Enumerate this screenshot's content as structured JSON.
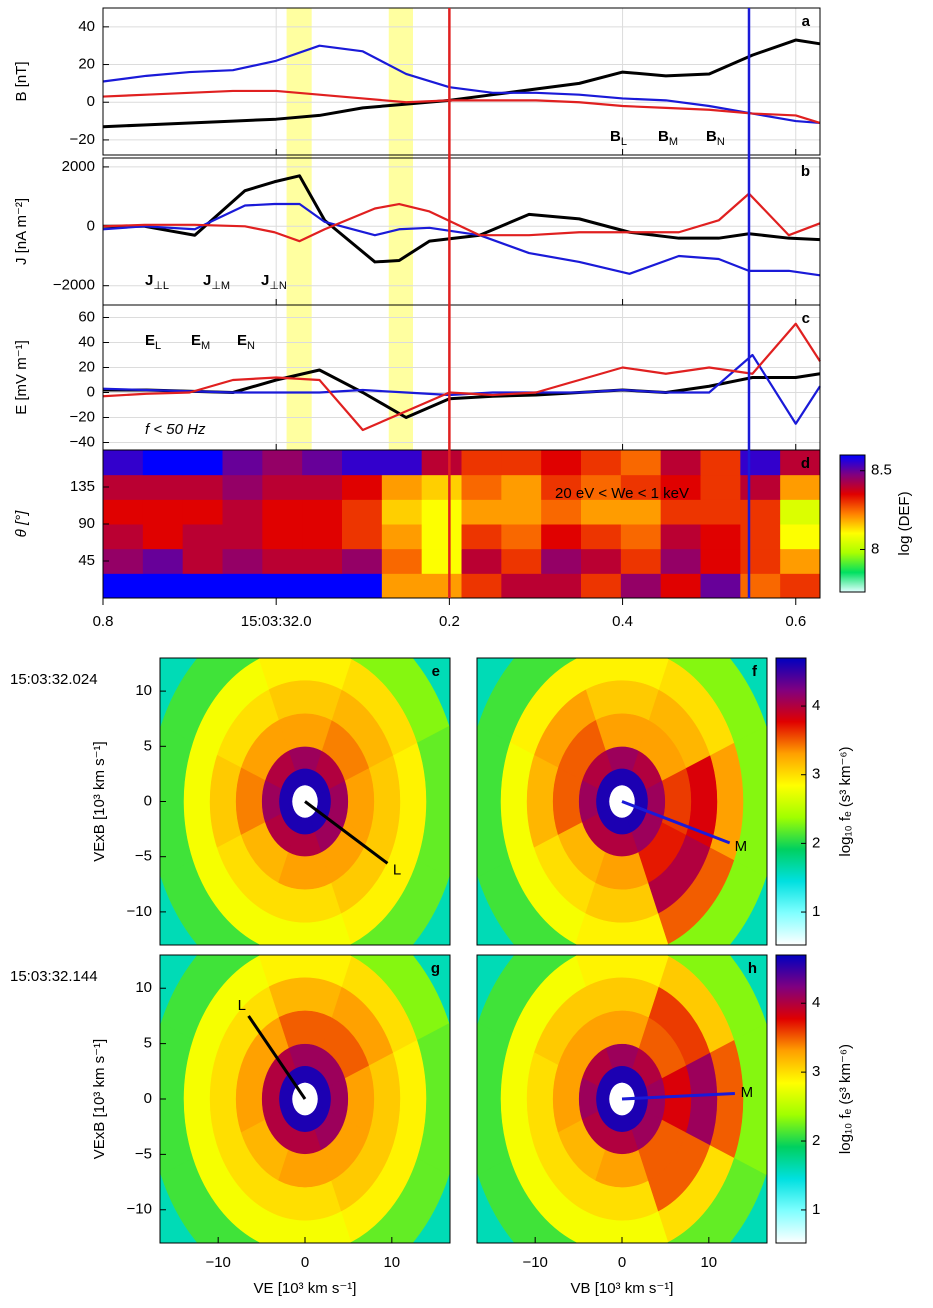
{
  "chart_data": [
    {
      "type": "line",
      "letter": "a",
      "ylabel": "B [nT]",
      "x": [
        0.8,
        0.85,
        0.9,
        0.95,
        1.0,
        1.05,
        1.1,
        1.15,
        1.2,
        1.25,
        1.3,
        1.35,
        1.4,
        1.45,
        1.5,
        1.55,
        1.6,
        1.628
      ],
      "xlim": [
        0.8,
        1.628
      ],
      "ylim": [
        -28,
        50
      ],
      "yticks": [
        {
          "value": -20,
          "label": "−20"
        },
        0,
        20,
        40
      ],
      "grid": true,
      "legend": "lower right",
      "series": [
        {
          "name": "BL",
          "color": "#000000",
          "values": [
            -13,
            -12,
            -11,
            -10,
            -9,
            -7,
            -3,
            -1,
            1,
            4,
            7,
            10,
            16,
            14,
            15,
            25,
            33,
            31
          ]
        },
        {
          "name": "BM",
          "color": "#1a1ad8",
          "values": [
            11,
            14,
            16,
            17,
            22,
            30,
            27,
            15,
            8,
            5,
            5,
            4,
            2,
            1,
            -2,
            -6,
            -10,
            -11
          ]
        },
        {
          "name": "BN",
          "color": "#e02020",
          "values": [
            3,
            4,
            5,
            6,
            6,
            4,
            2,
            0,
            1,
            1,
            1,
            0,
            -2,
            -3,
            -4,
            -6,
            -7,
            -11
          ]
        }
      ],
      "highlight_spans": [
        [
          1.012,
          1.041
        ],
        [
          1.13,
          1.158
        ]
      ],
      "span_color": "#ffff80",
      "vlines": [
        {
          "x": 1.2,
          "color": "#e02020"
        },
        {
          "x": 1.546,
          "color": "#1a1ad8"
        }
      ]
    },
    {
      "type": "line",
      "letter": "b",
      "ylabel": "J [nA m⁻²]",
      "x": [
        0.8,
        0.848,
        0.906,
        0.964,
        0.998,
        1.027,
        1.056,
        1.114,
        1.142,
        1.177,
        1.235,
        1.292,
        1.35,
        1.408,
        1.465,
        1.511,
        1.546,
        1.592,
        1.628
      ],
      "xlim": [
        0.8,
        1.628
      ],
      "ylim": [
        -2650,
        2300
      ],
      "yticks": [
        {
          "value": -2000,
          "label": "−2000"
        },
        0,
        2000
      ],
      "grid": true,
      "legend": "lower left",
      "series": [
        {
          "name": "J⊥L",
          "color": "#000000",
          "values": [
            0,
            0,
            -300,
            1200,
            1500,
            1700,
            200,
            -1200,
            -1150,
            -500,
            -300,
            400,
            250,
            -200,
            -400,
            -400,
            -250,
            -400,
            -450
          ]
        },
        {
          "name": "J⊥M",
          "color": "#1a1ad8",
          "values": [
            -100,
            0,
            -100,
            700,
            750,
            750,
            150,
            -300,
            -100,
            -50,
            -300,
            -900,
            -1200,
            -1600,
            -1000,
            -1100,
            -1500,
            -1500,
            -1650
          ]
        },
        {
          "name": "J⊥N",
          "color": "#e02020",
          "values": [
            0,
            50,
            50,
            0,
            -200,
            -500,
            -100,
            600,
            750,
            500,
            -300,
            -300,
            -200,
            -200,
            -200,
            200,
            1100,
            -300,
            100
          ]
        }
      ]
    },
    {
      "type": "line",
      "letter": "c",
      "ylabel": "E [mV m⁻¹]",
      "annotation": "f < 50 Hz",
      "x": [
        0.8,
        0.85,
        0.9,
        0.95,
        1.0,
        1.05,
        1.1,
        1.15,
        1.2,
        1.25,
        1.3,
        1.35,
        1.4,
        1.45,
        1.5,
        1.55,
        1.6,
        1.628
      ],
      "xlim": [
        0.8,
        1.628
      ],
      "ylim": [
        -46,
        70
      ],
      "yticks": [
        {
          "value": -40,
          "label": "−40"
        },
        {
          "value": -20,
          "label": "−20"
        },
        0,
        20,
        40,
        60
      ],
      "grid": true,
      "legend": "upper left",
      "series": [
        {
          "name": "EL",
          "color": "#000000",
          "values": [
            2,
            2,
            1,
            0,
            10,
            18,
            0,
            -20,
            -5,
            -3,
            -2,
            0,
            2,
            0,
            5,
            12,
            12,
            15
          ]
        },
        {
          "name": "EM",
          "color": "#1a1ad8",
          "values": [
            3,
            2,
            1,
            0,
            0,
            0,
            2,
            0,
            -2,
            0,
            0,
            0,
            2,
            0,
            0,
            30,
            -25,
            5
          ]
        },
        {
          "name": "EN",
          "color": "#e02020",
          "values": [
            -3,
            -1,
            0,
            10,
            12,
            10,
            -30,
            -15,
            0,
            -2,
            0,
            10,
            20,
            15,
            20,
            15,
            55,
            25
          ]
        }
      ]
    },
    {
      "type": "heatmap",
      "letter": "d",
      "ylabel": "θ [°]",
      "annotation": "20 eV < We < 1 keV",
      "x_bins": [
        0.8,
        0.846,
        0.892,
        0.938,
        0.984,
        1.03,
        1.076,
        1.122,
        1.168,
        1.214,
        1.26,
        1.306,
        1.352,
        1.398,
        1.444,
        1.49,
        1.536,
        1.582,
        1.628
      ],
      "y_bins": [
        0,
        30,
        60,
        90,
        120,
        150,
        180
      ],
      "values": [
        [
          8.6,
          8.6,
          8.6,
          8.6,
          8.6,
          8.6,
          8.6,
          8.2,
          8.2,
          8.3,
          8.4,
          8.4,
          8.3,
          8.45,
          8.35,
          8.5,
          8.25,
          8.3
        ],
        [
          8.45,
          8.5,
          8.4,
          8.45,
          8.4,
          8.4,
          8.45,
          8.25,
          8.1,
          8.4,
          8.3,
          8.45,
          8.4,
          8.3,
          8.45,
          8.35,
          8.3,
          8.2
        ],
        [
          8.4,
          8.35,
          8.4,
          8.4,
          8.35,
          8.35,
          8.3,
          8.2,
          8.1,
          8.3,
          8.25,
          8.35,
          8.3,
          8.25,
          8.4,
          8.35,
          8.3,
          8.1
        ],
        [
          8.35,
          8.35,
          8.35,
          8.4,
          8.35,
          8.35,
          8.3,
          8.15,
          8.1,
          8.2,
          8.2,
          8.25,
          8.2,
          8.2,
          8.3,
          8.3,
          8.3,
          8.05
        ],
        [
          8.4,
          8.4,
          8.4,
          8.45,
          8.4,
          8.4,
          8.35,
          8.2,
          8.15,
          8.25,
          8.2,
          8.3,
          8.25,
          8.3,
          8.35,
          8.3,
          8.4,
          8.2
        ],
        [
          8.55,
          8.6,
          8.6,
          8.5,
          8.45,
          8.5,
          8.55,
          8.55,
          8.4,
          8.3,
          8.3,
          8.35,
          8.3,
          8.25,
          8.4,
          8.3,
          8.55,
          8.4
        ]
      ],
      "xlim": [
        0.8,
        1.628
      ],
      "ylim": [
        0,
        180
      ],
      "xticks": [
        0.8,
        {
          "value": 1.0,
          "label": "15:03:32.0"
        },
        {
          "value": 1.2,
          "label": "0.2"
        },
        {
          "value": 1.4,
          "label": "0.4"
        },
        {
          "value": 1.6,
          "label": "0.6"
        }
      ],
      "yticks": [
        45,
        90,
        135
      ],
      "colorbar": {
        "lim": [
          7.73,
          8.6
        ],
        "ticks": [
          8,
          8.5
        ],
        "label": "log (DEF)",
        "colors": [
          "#e0ffff",
          "#00e060",
          "#aaff00",
          "#ffff00",
          "#ff8000",
          "#e00000",
          "#800080",
          "#0000ff"
        ]
      }
    },
    {
      "type": "polar_heatmap",
      "letter": "e",
      "timestamp": "15:03:32.024",
      "ylabel": "VExB [10³ km s⁻¹]",
      "xlim": [
        -16.7,
        16.7
      ],
      "ylim": [
        -13,
        13
      ],
      "yticks": [
        {
          "value": -10,
          "label": "−10"
        },
        {
          "value": -5,
          "label": "−5"
        },
        0,
        5,
        10
      ],
      "r_bins": [
        0,
        1.5,
        3,
        5,
        8,
        11,
        14,
        18,
        22
      ],
      "theta_bins": [
        -22.5,
        22.5,
        67.5,
        112.5,
        157.5,
        202.5,
        247.5,
        292.5,
        337.5
      ],
      "values": [
        [
          null,
          null,
          null,
          null,
          null,
          null,
          null,
          null
        ],
        [
          4.6,
          4.6,
          4.6,
          4.6,
          4.6,
          4.6,
          4.6,
          4.6
        ],
        [
          4.1,
          4.0,
          4.1,
          4.0,
          4.1,
          4.0,
          4.0,
          4.1
        ],
        [
          3.3,
          3.4,
          3.3,
          3.3,
          3.4,
          3.2,
          3.3,
          3.3
        ],
        [
          3.1,
          3.2,
          3.1,
          3.0,
          3.1,
          3.0,
          3.0,
          3.1
        ],
        [
          2.9,
          3.0,
          2.9,
          2.8,
          2.8,
          2.8,
          2.8,
          2.9
        ],
        [
          2.2,
          2.3,
          2.2,
          2.1,
          2.1,
          2.1,
          2.1,
          2.2
        ],
        [
          1.6,
          1.6,
          1.6,
          1.6,
          1.6,
          1.6,
          1.6,
          1.6
        ]
      ],
      "vector": {
        "x": 9.5,
        "y": -5.6,
        "label": "L",
        "color": "#000000"
      },
      "colormap": {
        "lim": [
          0.52,
          4.7
        ],
        "colors": [
          "#ffffff",
          "#80ffff",
          "#00e0e0",
          "#00d060",
          "#a0ff00",
          "#ffff00",
          "#ffa000",
          "#e00000",
          "#800080",
          "#0000c0"
        ]
      }
    },
    {
      "type": "polar_heatmap",
      "letter": "f",
      "xlim": [
        -16.7,
        16.7
      ],
      "ylim": [
        -13,
        13
      ],
      "r_bins": [
        0,
        1.5,
        3,
        5,
        8,
        11,
        14,
        18,
        22
      ],
      "theta_bins": [
        -22.5,
        22.5,
        67.5,
        112.5,
        157.5,
        202.5,
        247.5,
        292.5,
        337.5
      ],
      "values": [
        [
          null,
          null,
          null,
          null,
          null,
          null,
          null,
          null
        ],
        [
          4.6,
          4.6,
          4.6,
          4.6,
          4.6,
          4.6,
          4.6,
          4.6
        ],
        [
          4.1,
          4.0,
          4.1,
          4.0,
          4.1,
          4.0,
          4.0,
          4.1
        ],
        [
          3.6,
          3.3,
          3.3,
          3.5,
          3.5,
          3.2,
          3.3,
          3.7
        ],
        [
          3.8,
          3.2,
          3.1,
          3.3,
          3.2,
          3.0,
          3.1,
          4.0
        ],
        [
          3.3,
          3.0,
          2.9,
          2.9,
          2.8,
          2.8,
          2.9,
          3.5
        ],
        [
          2.3,
          2.3,
          2.2,
          2.1,
          2.1,
          2.1,
          2.1,
          2.3
        ],
        [
          1.6,
          1.6,
          1.6,
          1.6,
          1.6,
          1.6,
          1.6,
          1.6
        ]
      ],
      "vector": {
        "x": 12.4,
        "y": -3.75,
        "label": "M",
        "color": "#1a1ad8"
      },
      "colormap": {
        "lim": [
          0.52,
          4.7
        ],
        "colors": [
          "#ffffff",
          "#80ffff",
          "#00e0e0",
          "#00d060",
          "#a0ff00",
          "#ffff00",
          "#ffa000",
          "#e00000",
          "#800080",
          "#0000c0"
        ]
      },
      "colorbar": {
        "ticks": [
          1,
          2,
          3,
          4
        ],
        "label": "log₁₀ fₑ (s³ km⁻⁶)"
      }
    },
    {
      "type": "polar_heatmap",
      "letter": "g",
      "timestamp": "15:03:32.144",
      "ylabel": "VExB [10³ km s⁻¹]",
      "xlabel": "VE [10³ km s⁻¹]",
      "xlim": [
        -16.7,
        16.7
      ],
      "ylim": [
        -13,
        13
      ],
      "xticks": [
        {
          "value": -10,
          "label": "−10"
        },
        0,
        10
      ],
      "yticks": [
        {
          "value": -10,
          "label": "−10"
        },
        {
          "value": -5,
          "label": "−5"
        },
        0,
        5,
        10
      ],
      "r_bins": [
        0,
        1.5,
        3,
        5,
        8,
        11,
        14,
        18,
        22
      ],
      "theta_bins": [
        -22.5,
        22.5,
        67.5,
        112.5,
        157.5,
        202.5,
        247.5,
        292.5,
        337.5
      ],
      "values": [
        [
          null,
          null,
          null,
          null,
          null,
          null,
          null,
          null
        ],
        [
          4.6,
          4.6,
          4.6,
          4.6,
          4.6,
          4.6,
          4.6,
          4.6
        ],
        [
          4.1,
          4.1,
          4.1,
          4.0,
          4.0,
          4.0,
          4.0,
          4.1
        ],
        [
          3.3,
          3.5,
          3.5,
          3.3,
          3.3,
          3.2,
          3.3,
          3.3
        ],
        [
          3.1,
          3.3,
          3.2,
          3.0,
          3.0,
          3.0,
          3.0,
          3.1
        ],
        [
          2.9,
          3.0,
          2.9,
          2.8,
          2.8,
          2.8,
          2.8,
          2.9
        ],
        [
          2.2,
          2.3,
          2.2,
          2.1,
          2.1,
          2.1,
          2.1,
          2.2
        ],
        [
          1.6,
          1.6,
          1.6,
          1.6,
          1.6,
          1.6,
          1.6,
          1.6
        ]
      ],
      "vector": {
        "x": -6.5,
        "y": 7.5,
        "label": "L",
        "color": "#000000"
      },
      "colormap": {
        "lim": [
          0.52,
          4.7
        ],
        "colors": [
          "#ffffff",
          "#80ffff",
          "#00e0e0",
          "#00d060",
          "#a0ff00",
          "#ffff00",
          "#ffa000",
          "#e00000",
          "#800080",
          "#0000c0"
        ]
      }
    },
    {
      "type": "polar_heatmap",
      "letter": "h",
      "xlabel": "VB [10³ km s⁻¹]",
      "xlim": [
        -16.7,
        16.7
      ],
      "ylim": [
        -13,
        13
      ],
      "xticks": [
        {
          "value": -10,
          "label": "−10"
        },
        0,
        10
      ],
      "r_bins": [
        0,
        1.5,
        3,
        5,
        8,
        11,
        14,
        18,
        22
      ],
      "theta_bins": [
        -22.5,
        22.5,
        67.5,
        112.5,
        157.5,
        202.5,
        247.5,
        292.5,
        337.5
      ],
      "values": [
        [
          null,
          null,
          null,
          null,
          null,
          null,
          null,
          null
        ],
        [
          4.6,
          4.6,
          4.6,
          4.6,
          4.6,
          4.6,
          4.6,
          4.6
        ],
        [
          4.1,
          4.0,
          4.1,
          4.0,
          4.1,
          4.0,
          4.0,
          4.1
        ],
        [
          3.8,
          3.5,
          3.3,
          3.3,
          3.3,
          3.2,
          3.3,
          3.5
        ],
        [
          4.1,
          3.6,
          3.1,
          3.1,
          3.0,
          3.0,
          3.0,
          3.5
        ],
        [
          3.5,
          3.1,
          2.9,
          2.8,
          2.8,
          2.8,
          2.8,
          3.0
        ],
        [
          2.3,
          2.3,
          2.2,
          2.1,
          2.1,
          2.1,
          2.1,
          2.2
        ],
        [
          1.6,
          1.6,
          1.6,
          1.6,
          1.6,
          1.6,
          1.6,
          1.6
        ]
      ],
      "vector": {
        "x": 13,
        "y": 0.5,
        "label": "M",
        "color": "#1a1ad8"
      },
      "colormap": {
        "lim": [
          0.52,
          4.7
        ],
        "colors": [
          "#ffffff",
          "#80ffff",
          "#00e0e0",
          "#00d060",
          "#a0ff00",
          "#ffff00",
          "#ffa000",
          "#e00000",
          "#800080",
          "#0000c0"
        ]
      },
      "colorbar": {
        "ticks": [
          1,
          2,
          3,
          4
        ],
        "label": "log₁₀ fₑ (s³ km⁻⁶)"
      }
    }
  ]
}
